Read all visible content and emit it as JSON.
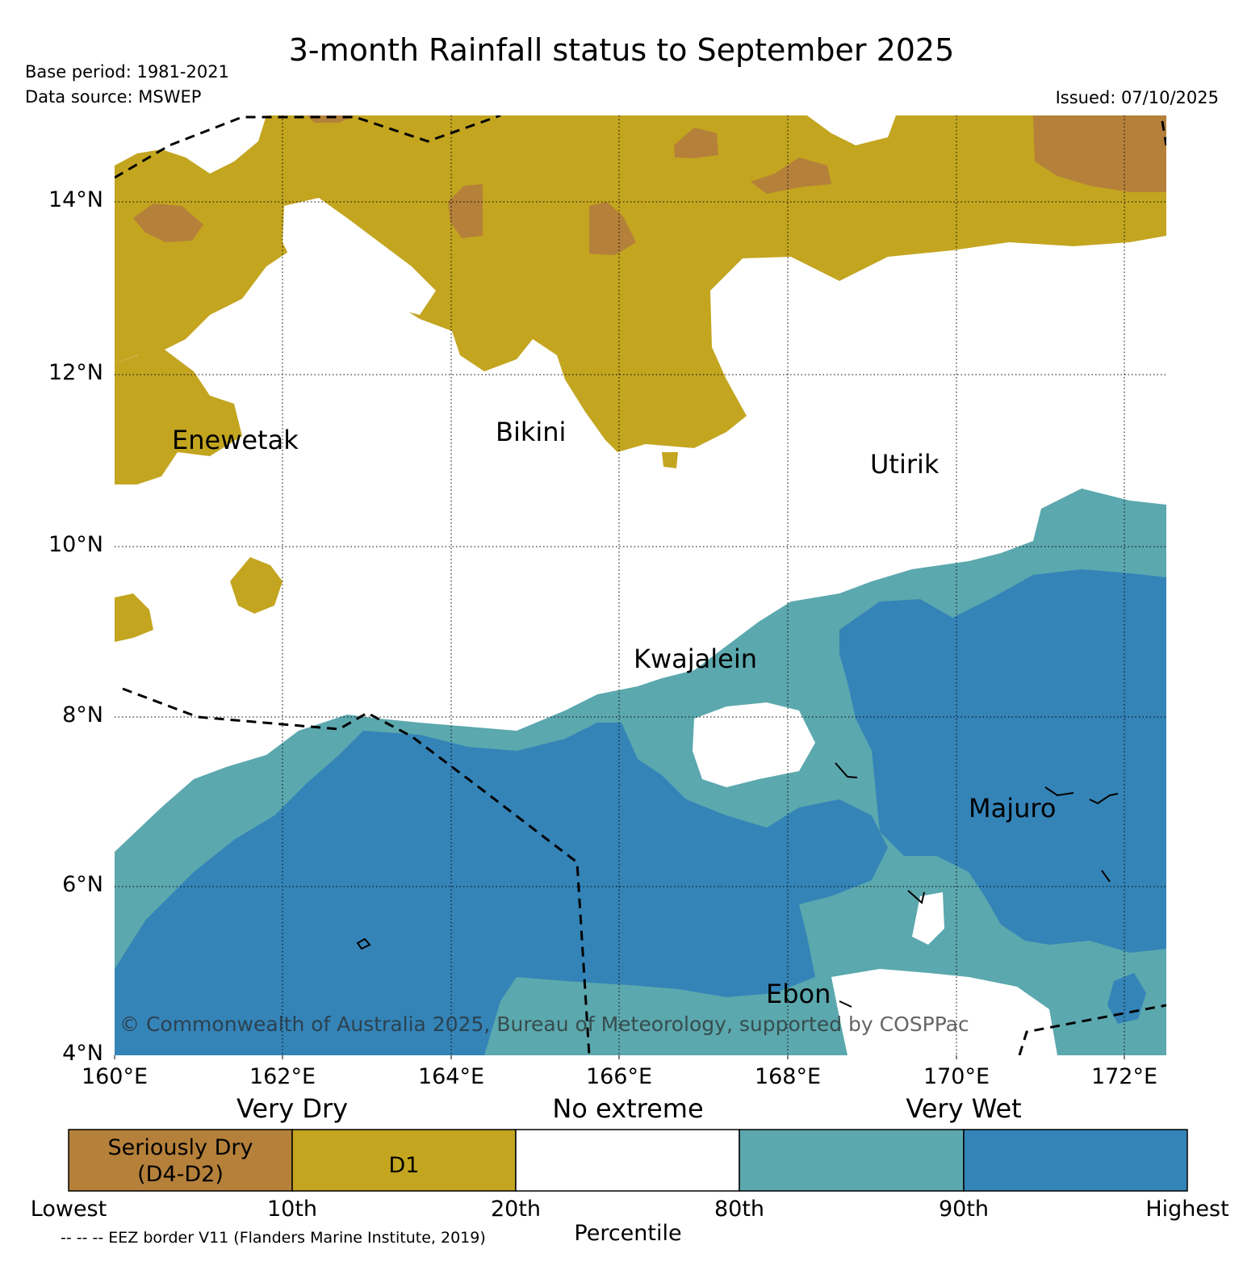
{
  "header": {
    "title": "3-month Rainfall status to September 2025",
    "base_period": "Base period: 1981-2021",
    "data_source": "Data source: MSWEP",
    "issued": "Issued: 07/10/2025"
  },
  "map": {
    "lat_ticks": [
      "14°N",
      "12°N",
      "10°N",
      "8°N",
      "6°N",
      "4°N"
    ],
    "lon_ticks": [
      "160°E",
      "162°E",
      "164°E",
      "166°E",
      "168°E",
      "170°E",
      "172°E"
    ],
    "places": {
      "enewetak": "Enewetak",
      "bikini": "Bikini",
      "utirik": "Utirik",
      "kwajalein": "Kwajalein",
      "majuro": "Majuro",
      "ebon": "Ebon"
    },
    "copyright": "© Commonwealth of Australia 2025, Bureau of Meteorology, supported by COSPPac"
  },
  "legend": {
    "categories": {
      "very_dry": "Very Dry",
      "no_extreme": "No extreme",
      "very_wet": "Very Wet"
    },
    "segments": [
      {
        "label_line1": "Seriously Dry",
        "label_line2": "(D4-D2)",
        "color": "#b5803a"
      },
      {
        "label_line1": "D1",
        "color": "#c3a520"
      },
      {
        "label_line1": "",
        "color": "#ffffff"
      },
      {
        "label_line1": "",
        "color": "#5ba8ae"
      },
      {
        "label_line1": "",
        "color": "#3484b8"
      }
    ],
    "percentiles": [
      "Lowest",
      "10th",
      "20th",
      "80th",
      "90th",
      "Highest"
    ],
    "axis_label": "Percentile",
    "eez_note": "-- -- -- EEZ border V11 (Flanders Marine Institute, 2019)"
  },
  "colors": {
    "seriously_dry": "#b5803a",
    "d1": "#c3a520",
    "no_extreme": "#ffffff",
    "very_wet_80": "#5ba8ae",
    "very_wet_90": "#3484b8"
  }
}
